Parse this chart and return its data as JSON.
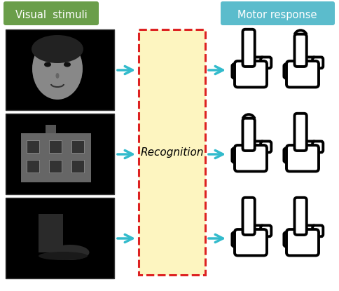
{
  "bg_color": "#ffffff",
  "visual_stimuli_label": "Visual  stimuli",
  "visual_stimuli_bg": "#6a9e4a",
  "motor_response_label": "Motor response",
  "motor_response_bg": "#5bbccc",
  "recognition_label": "Recognition",
  "recognition_box_fill": "#fdf5c0",
  "recognition_box_edge": "#dd2222",
  "arrow_color": "#33bbcc",
  "panel_color": "#000000",
  "hand_color": "#000000",
  "hand_fill": "#ffffff"
}
